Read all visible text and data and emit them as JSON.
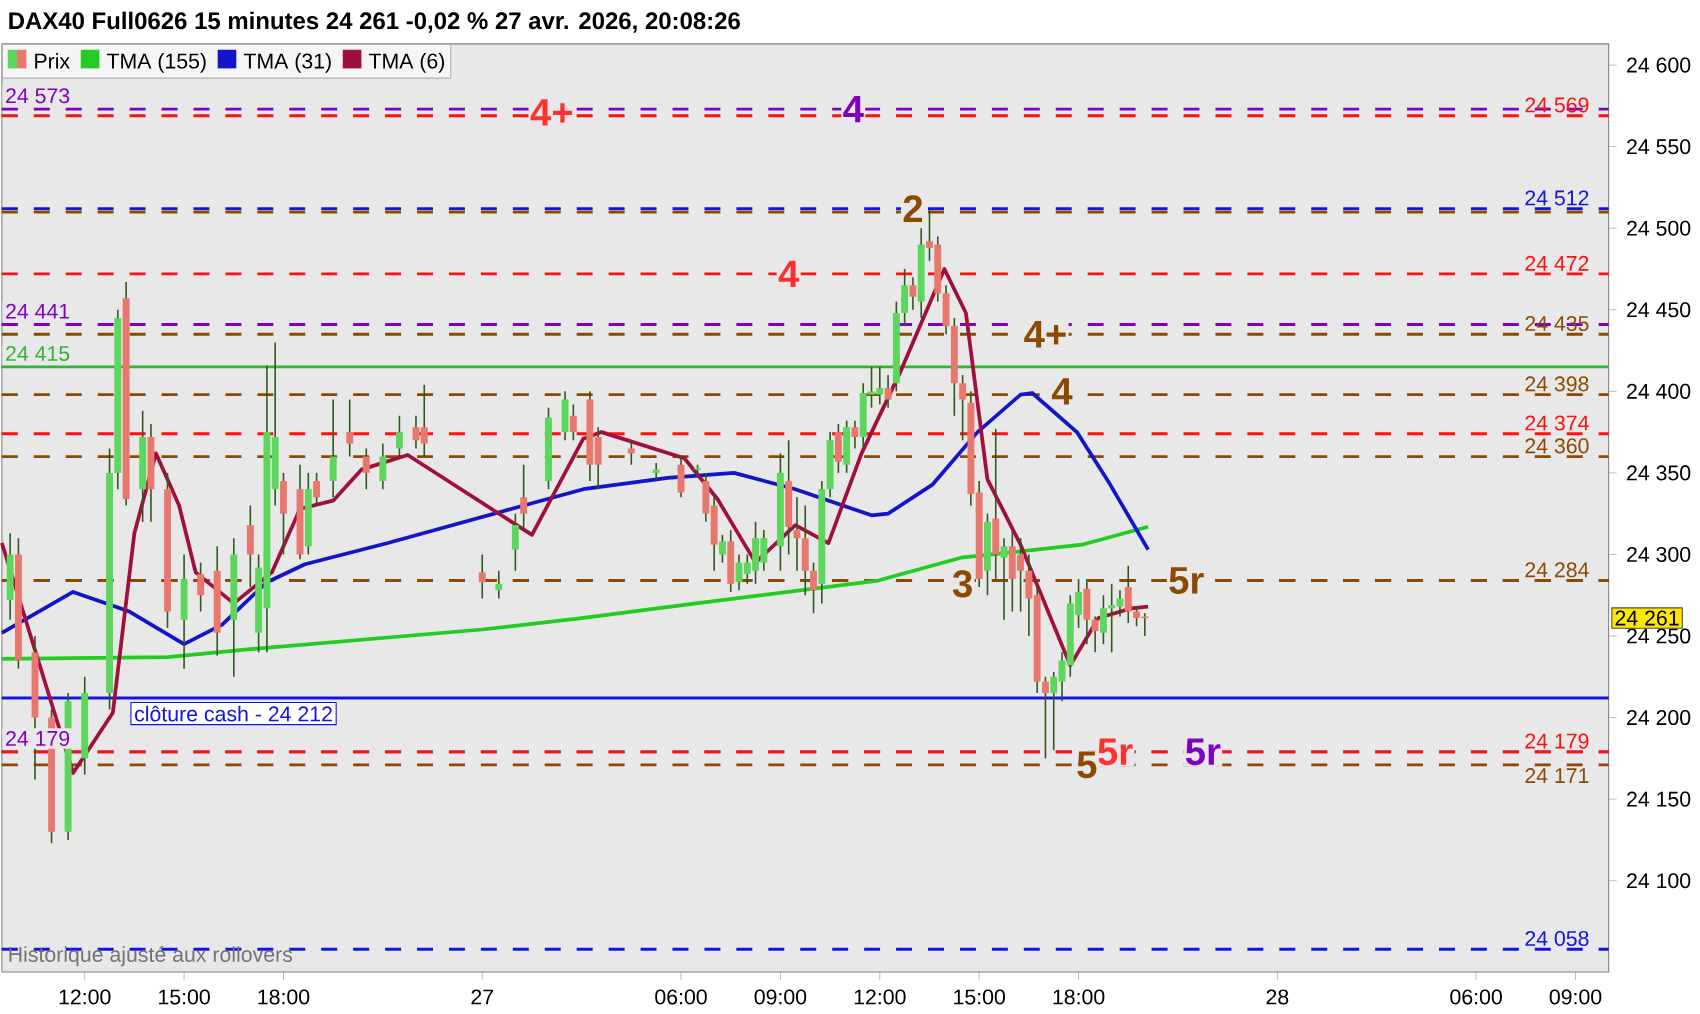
{
  "chart_data": {
    "type": "candlestick",
    "title": "DAX40 Full0626 15 minutes 24 261 -0,02 % 27 avr. 2026, 20:08:26",
    "legend": "top left",
    "xlim": [
      "2026-04-26T09:30",
      "2026-04-28T10:00"
    ],
    "xticks": [
      {
        "value": "2026-04-26T12:00",
        "label": "12:00"
      },
      {
        "value": "2026-04-26T15:00",
        "label": "15:00"
      },
      {
        "value": "2026-04-26T18:00",
        "label": "18:00"
      },
      {
        "value": "2026-04-27T00:00",
        "label": "27"
      },
      {
        "value": "2026-04-27T06:00",
        "label": "06:00"
      },
      {
        "value": "2026-04-27T09:00",
        "label": "09:00"
      },
      {
        "value": "2026-04-27T12:00",
        "label": "12:00"
      },
      {
        "value": "2026-04-27T15:00",
        "label": "15:00"
      },
      {
        "value": "2026-04-27T18:00",
        "label": "18:00"
      },
      {
        "value": "2026-04-28T00:00",
        "label": "28"
      },
      {
        "value": "2026-04-28T06:00",
        "label": "06:00"
      },
      {
        "value": "2026-04-28T09:00",
        "label": "09:00"
      }
    ],
    "ylim": [
      24044,
      24613
    ],
    "yticks": [
      {
        "value": 24100,
        "label": "24 100"
      },
      {
        "value": 24150,
        "label": "24 150"
      },
      {
        "value": 24200,
        "label": "24 200"
      },
      {
        "value": 24250,
        "label": "24 250"
      },
      {
        "value": 24300,
        "label": "24 300"
      },
      {
        "value": 24350,
        "label": "24 350"
      },
      {
        "value": 24400,
        "label": "24 400"
      },
      {
        "value": 24450,
        "label": "24 450"
      },
      {
        "value": 24500,
        "label": "24 500"
      },
      {
        "value": 24550,
        "label": "24 550"
      },
      {
        "value": 24600,
        "label": "24 600"
      }
    ],
    "series": [
      {
        "name": "Prix",
        "x": [
          "2026-04-26T09:45",
          "2026-04-26T10:00",
          "2026-04-26T10:30",
          "2026-04-26T11:00",
          "2026-04-26T11:30",
          "2026-04-26T12:00",
          "2026-04-26T12:45",
          "2026-04-26T13:00",
          "2026-04-26T13:15",
          "2026-04-26T13:45",
          "2026-04-26T14:00",
          "2026-04-26T14:30",
          "2026-04-26T15:00",
          "2026-04-26T15:30",
          "2026-04-26T16:00",
          "2026-04-26T16:30",
          "2026-04-26T17:00",
          "2026-04-26T17:15",
          "2026-04-26T17:30",
          "2026-04-26T17:45",
          "2026-04-26T18:00",
          "2026-04-26T18:30",
          "2026-04-26T18:45",
          "2026-04-26T19:00",
          "2026-04-26T19:30",
          "2026-04-26T20:00",
          "2026-04-26T20:30",
          "2026-04-26T21:00",
          "2026-04-26T21:30",
          "2026-04-26T22:00",
          "2026-04-26T22:15",
          "2026-04-27T00:00",
          "2026-04-27T00:30",
          "2026-04-27T01:00",
          "2026-04-27T01:15",
          "2026-04-27T02:00",
          "2026-04-27T02:30",
          "2026-04-27T02:45",
          "2026-04-27T03:15",
          "2026-04-27T03:30",
          "2026-04-27T04:30",
          "2026-04-27T05:15",
          "2026-04-27T06:00",
          "2026-04-27T06:30",
          "2026-04-27T06:45",
          "2026-04-27T07:00",
          "2026-04-27T07:15",
          "2026-04-27T07:30",
          "2026-04-27T07:45",
          "2026-04-27T08:00",
          "2026-04-27T08:15",
          "2026-04-27T08:30",
          "2026-04-27T09:00",
          "2026-04-27T09:15",
          "2026-04-27T09:30",
          "2026-04-27T09:45",
          "2026-04-27T10:00",
          "2026-04-27T10:15",
          "2026-04-27T10:30",
          "2026-04-27T10:45",
          "2026-04-27T11:00",
          "2026-04-27T11:15",
          "2026-04-27T11:30",
          "2026-04-27T11:45",
          "2026-04-27T12:00",
          "2026-04-27T12:15",
          "2026-04-27T12:30",
          "2026-04-27T12:45",
          "2026-04-27T13:00",
          "2026-04-27T13:15",
          "2026-04-27T13:30",
          "2026-04-27T13:45",
          "2026-04-27T14:00",
          "2026-04-27T14:15",
          "2026-04-27T14:30",
          "2026-04-27T14:45",
          "2026-04-27T15:00",
          "2026-04-27T15:15",
          "2026-04-27T15:30",
          "2026-04-27T15:45",
          "2026-04-27T16:00",
          "2026-04-27T16:15",
          "2026-04-27T16:30",
          "2026-04-27T16:45",
          "2026-04-27T17:00",
          "2026-04-27T17:15",
          "2026-04-27T17:30",
          "2026-04-27T17:45",
          "2026-04-27T18:00",
          "2026-04-27T18:15",
          "2026-04-27T18:30",
          "2026-04-27T18:45",
          "2026-04-27T19:00",
          "2026-04-27T19:15",
          "2026-04-27T19:30",
          "2026-04-27T19:45",
          "2026-04-27T20:00"
        ],
        "ohlc": [
          [
            24272,
            24313,
            24260,
            24300
          ],
          [
            24300,
            24310,
            24230,
            24235
          ],
          [
            24240,
            24250,
            24162,
            24200
          ],
          [
            24200,
            24205,
            24123,
            24130
          ],
          [
            24130,
            24215,
            24125,
            24210
          ],
          [
            24175,
            24225,
            24165,
            24215
          ],
          [
            24215,
            24365,
            24205,
            24350
          ],
          [
            24350,
            24450,
            24340,
            24445
          ],
          [
            24457,
            24467,
            24330,
            24334
          ],
          [
            24340,
            24388,
            24320,
            24372
          ],
          [
            24372,
            24380,
            24320,
            24340
          ],
          [
            24340,
            24350,
            24255,
            24265
          ],
          [
            24260,
            24300,
            24230,
            24285
          ],
          [
            24288,
            24295,
            24265,
            24275
          ],
          [
            24290,
            24305,
            24238,
            24252
          ],
          [
            24260,
            24310,
            24225,
            24300
          ],
          [
            24318,
            24330,
            24280,
            24300
          ],
          [
            24252,
            24300,
            24240,
            24292
          ],
          [
            24267,
            24416,
            24240,
            24375
          ],
          [
            24340,
            24430,
            24330,
            24372
          ],
          [
            24345,
            24350,
            24300,
            24325
          ],
          [
            24340,
            24355,
            24297,
            24300
          ],
          [
            24305,
            24350,
            24300,
            24340
          ],
          [
            24345,
            24350,
            24330,
            24335
          ],
          [
            24345,
            24395,
            24335,
            24360
          ],
          [
            24375,
            24395,
            24360,
            24368
          ],
          [
            24360,
            24365,
            24340,
            24350
          ],
          [
            24345,
            24368,
            24340,
            24360
          ],
          [
            24365,
            24385,
            24360,
            24375
          ],
          [
            24378,
            24385,
            24365,
            24370
          ],
          [
            24378,
            24404,
            24360,
            24368
          ],
          [
            24289,
            24300,
            24273,
            24283
          ],
          [
            24278,
            24290,
            24273,
            24282
          ],
          [
            24303,
            24325,
            24290,
            24318
          ],
          [
            24335,
            24355,
            24315,
            24325
          ],
          [
            24345,
            24390,
            24340,
            24384
          ],
          [
            24375,
            24400,
            24370,
            24395
          ],
          [
            24385,
            24392,
            24370,
            24375
          ],
          [
            24395,
            24400,
            24345,
            24355
          ],
          [
            24372,
            24378,
            24340,
            24355
          ],
          [
            24365,
            24370,
            24355,
            24362
          ],
          [
            24350,
            24356,
            24346,
            24352
          ],
          [
            24355,
            24360,
            24335,
            24338
          ],
          [
            24352,
            24355,
            24348,
            24353
          ],
          [
            24345,
            24350,
            24320,
            24325
          ],
          [
            24330,
            24335,
            24290,
            24306
          ],
          [
            24300,
            24312,
            24295,
            24308
          ],
          [
            24308,
            24315,
            24277,
            24282
          ],
          [
            24283,
            24300,
            24278,
            24295
          ],
          [
            24288,
            24300,
            24282,
            24295
          ],
          [
            24290,
            24320,
            24282,
            24310
          ],
          [
            24295,
            24315,
            24290,
            24310
          ],
          [
            24305,
            24362,
            24290,
            24350
          ],
          [
            24345,
            24370,
            24300,
            24317
          ],
          [
            24315,
            24335,
            24290,
            24310
          ],
          [
            24310,
            24330,
            24275,
            24290
          ],
          [
            24290,
            24295,
            24264,
            24278
          ],
          [
            24282,
            24345,
            24270,
            24340
          ],
          [
            24340,
            24375,
            24335,
            24370
          ],
          [
            24375,
            24380,
            24350,
            24357
          ],
          [
            24355,
            24382,
            24350,
            24378
          ],
          [
            24378,
            24382,
            24365,
            24372
          ],
          [
            24372,
            24405,
            24365,
            24399
          ],
          [
            24398,
            24415,
            24390,
            24400
          ],
          [
            24398,
            24415,
            24392,
            24402
          ],
          [
            24402,
            24410,
            24390,
            24395
          ],
          [
            24405,
            24455,
            24400,
            24448
          ],
          [
            24448,
            24475,
            24440,
            24465
          ],
          [
            24465,
            24470,
            24450,
            24458
          ],
          [
            24455,
            24500,
            24445,
            24490
          ],
          [
            24492,
            24511,
            24480,
            24488
          ],
          [
            24490,
            24495,
            24455,
            24460
          ],
          [
            24460,
            24465,
            24435,
            24440
          ],
          [
            24440,
            24445,
            24385,
            24405
          ],
          [
            24405,
            24410,
            24370,
            24395
          ],
          [
            24393,
            24400,
            24330,
            24337
          ],
          [
            24338,
            24345,
            24280,
            24285
          ],
          [
            24290,
            24325,
            24275,
            24320
          ],
          [
            24322,
            24377,
            24285,
            24300
          ],
          [
            24298,
            24310,
            24260,
            24305
          ],
          [
            24305,
            24315,
            24265,
            24285
          ],
          [
            24300,
            24310,
            24265,
            24290
          ],
          [
            24290,
            24300,
            24250,
            24273
          ],
          [
            24275,
            24280,
            24215,
            24222
          ],
          [
            24222,
            24225,
            24175,
            24215
          ],
          [
            24215,
            24228,
            24180,
            24225
          ],
          [
            24222,
            24240,
            24210,
            24235
          ],
          [
            24232,
            24275,
            24225,
            24270
          ],
          [
            24263,
            24285,
            24255,
            24277
          ],
          [
            24279,
            24285,
            24245,
            24260
          ],
          [
            24260,
            24262,
            24240,
            24253
          ],
          [
            24252,
            24275,
            24245,
            24267
          ],
          [
            24267,
            24282,
            24240,
            24269
          ],
          [
            24268,
            24278,
            24262,
            24273
          ],
          [
            24280,
            24293,
            24258,
            24265
          ],
          [
            24265,
            24268,
            24256,
            24261
          ],
          [
            24262,
            24264,
            24250,
            24261
          ]
        ]
      },
      {
        "name": "TMA (155)",
        "type": "line",
        "color": "#22cc22",
        "x": [
          "2026-04-26T09:30",
          "2026-04-26T14:30",
          "2026-04-26T17:00",
          "2026-04-27T00:00",
          "2026-04-27T03:00",
          "2026-04-27T06:27",
          "2026-04-27T11:57",
          "2026-04-27T14:27",
          "2026-04-27T18:06",
          "2026-04-27T20:06"
        ],
        "values": [
          24236,
          24237,
          24242,
          24254,
          24261,
          24270,
          24284,
          24298,
          24306,
          24317
        ]
      },
      {
        "name": "TMA (31)",
        "type": "line",
        "color": "#1414c8",
        "x": [
          "2026-04-26T09:30",
          "2026-04-26T11:39",
          "2026-04-26T13:21",
          "2026-04-26T15:00",
          "2026-04-26T16:09",
          "2026-04-26T17:30",
          "2026-04-26T18:39",
          "2026-04-26T21:09",
          "2026-04-27T01:15",
          "2026-04-27T03:03",
          "2026-04-27T05:36",
          "2026-04-27T07:36",
          "2026-04-27T09:27",
          "2026-04-27T11:45",
          "2026-04-27T12:15",
          "2026-04-27T13:36",
          "2026-04-27T14:57",
          "2026-04-27T16:15",
          "2026-04-27T16:36",
          "2026-04-27T17:57",
          "2026-04-27T18:57",
          "2026-04-27T20:06"
        ],
        "values": [
          24252,
          24277,
          24265,
          24245,
          24257,
          24283,
          24294,
          24307,
          24330,
          24340,
          24347,
          24350,
          24340,
          24324,
          24325,
          24343,
          24375,
          24398,
          24399,
          24375,
          24343,
          24303
        ]
      },
      {
        "name": "TMA (6)",
        "type": "line",
        "color": "#a0103c",
        "x": [
          "2026-04-26T09:30",
          "2026-04-26T11:39",
          "2026-04-26T12:51",
          "2026-04-26T13:30",
          "2026-04-26T14:09",
          "2026-04-26T14:51",
          "2026-04-26T15:21",
          "2026-04-26T16:30",
          "2026-04-26T17:39",
          "2026-04-26T18:30",
          "2026-04-26T19:30",
          "2026-04-26T20:21",
          "2026-04-26T21:45",
          "2026-04-27T01:30",
          "2026-04-27T03:03",
          "2026-04-27T03:36",
          "2026-04-27T06:06",
          "2026-04-27T07:06",
          "2026-04-27T08:15",
          "2026-04-27T09:27",
          "2026-04-27T10:27",
          "2026-04-27T11:27",
          "2026-04-27T12:36",
          "2026-04-27T13:57",
          "2026-04-27T14:36",
          "2026-04-27T15:15",
          "2026-04-27T16:15",
          "2026-04-27T17:45",
          "2026-04-27T18:36",
          "2026-04-27T19:36",
          "2026-04-27T20:06"
        ],
        "values": [
          24307,
          24166,
          24203,
          24313,
          24362,
          24330,
          24289,
          24270,
          24289,
          24328,
          24333,
          24352,
          24361,
          24312,
          24371,
          24375,
          24359,
          24334,
          24295,
          24318,
          24307,
          24362,
          24411,
          24475,
          24448,
          24346,
          24306,
          24232,
          24261,
          24267,
          24268
        ]
      }
    ],
    "ref_lines": [
      {
        "axis": "y",
        "value": 24573,
        "label": "24 573",
        "color": "#8000c0",
        "line_style": "dashed"
      },
      {
        "axis": "y",
        "value": 24569,
        "label": "24 569",
        "color": "#ff1010",
        "line_style": "dashed"
      },
      {
        "axis": "y",
        "value": 24512,
        "label": "24 512",
        "color": "#1414e0",
        "line_style": "dashed"
      },
      {
        "axis": "y",
        "value": 24510,
        "color": "#8b4a00",
        "line_style": "dashed"
      },
      {
        "axis": "y",
        "value": 24472,
        "label": "24 472",
        "color": "#ff1010",
        "line_style": "dashed"
      },
      {
        "axis": "y",
        "value": 24441,
        "label": "24 441",
        "color": "#8000c0",
        "line_style": "dashed"
      },
      {
        "axis": "y",
        "value": 24435,
        "label": "24 435",
        "color": "#8b4a00",
        "line_style": "dashed"
      },
      {
        "axis": "y",
        "value": 24415,
        "label": "24 415",
        "color": "#33b533",
        "line_style": "solid"
      },
      {
        "axis": "y",
        "value": 24398,
        "label": "24 398",
        "color": "#8b4a00",
        "line_style": "dashed"
      },
      {
        "axis": "y",
        "value": 24374,
        "label": "24 374",
        "color": "#ff1010",
        "line_style": "dashed"
      },
      {
        "axis": "y",
        "value": 24360,
        "label": "24 360",
        "color": "#8b4a00",
        "line_style": "dashed"
      },
      {
        "axis": "y",
        "value": 24284,
        "color": "#1414e0",
        "line_style": "dashed"
      },
      {
        "axis": "y",
        "value": 24284,
        "label": "24 284",
        "color": "#8b4a00",
        "line_style": "dashed"
      },
      {
        "axis": "y",
        "value": 24212,
        "label": "clôture cash -  24 212",
        "color": "#1414e0",
        "line_style": "solid"
      },
      {
        "axis": "y",
        "value": 24179,
        "label": "24 179",
        "color": "#8000c0",
        "line_style": "dashed"
      },
      {
        "axis": "y",
        "value": 24179,
        "label": "24 179",
        "color": "#ff1010",
        "line_style": "dashed"
      },
      {
        "axis": "y",
        "value": 24171,
        "label": "24 171",
        "color": "#8b4a00",
        "line_style": "dashed"
      },
      {
        "axis": "y",
        "value": 24058,
        "label": "24 058",
        "color": "#1414e0",
        "line_style": "dashed"
      }
    ],
    "annotations": [
      {
        "text": "4+",
        "x": "2026-04-27T02:06",
        "y": 24571
      },
      {
        "text": "4",
        "x": "2026-04-27T11:12",
        "y": 24573
      },
      {
        "text": "2",
        "x": "2026-04-27T13:00",
        "y": 24512
      },
      {
        "text": "4",
        "x": "2026-04-27T09:15",
        "y": 24472
      },
      {
        "text": "4+",
        "x": "2026-04-27T17:00",
        "y": 24435
      },
      {
        "text": "4",
        "x": "2026-04-27T17:30",
        "y": 24400
      },
      {
        "text": "3",
        "x": "2026-04-27T14:30",
        "y": 24282
      },
      {
        "text": "5r",
        "x": "2026-04-27T21:15",
        "y": 24284
      },
      {
        "text": "5r",
        "x": "2026-04-27T19:06",
        "y": 24179
      },
      {
        "text": "5",
        "x": "2026-04-27T18:15",
        "y": 24171
      },
      {
        "text": "5r",
        "x": "2026-04-27T21:45",
        "y": 24179
      },
      "24 261",
      "Historique ajusté aux rollovers"
    ]
  }
}
